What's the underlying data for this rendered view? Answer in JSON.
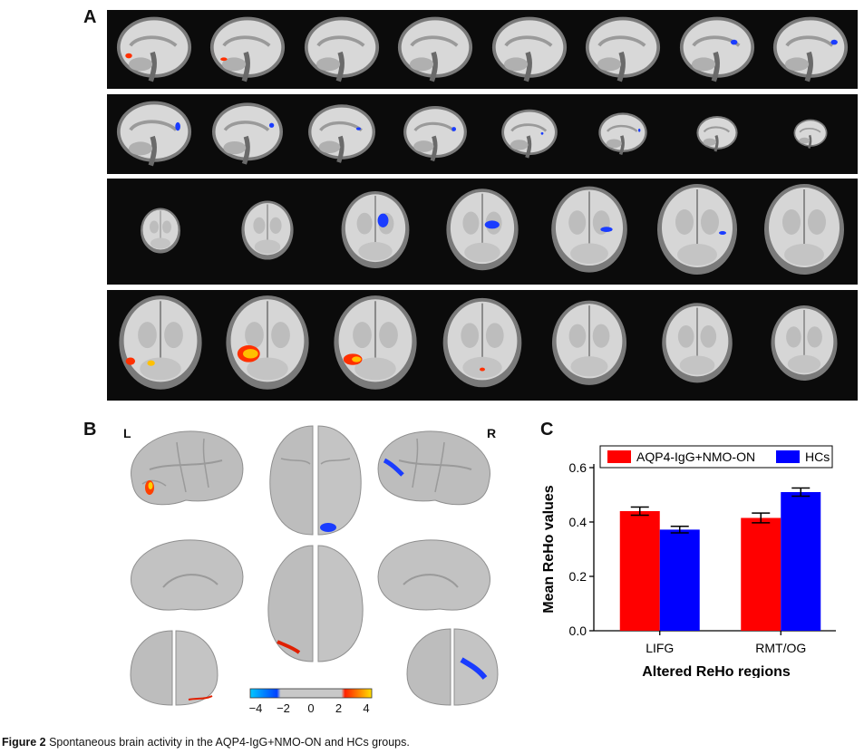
{
  "panels": {
    "a": "A",
    "b": "B",
    "c": "C"
  },
  "hemisphere_labels": {
    "left": "L",
    "right": "R"
  },
  "colorbar": {
    "ticks": [
      "−4",
      "−2",
      "0",
      "2",
      "4"
    ],
    "colors": [
      "#00c8ff",
      "#0040ff",
      "#c8c8c8",
      "#c8c8c8",
      "#ff2000",
      "#ffe000"
    ]
  },
  "caption": {
    "label": "Figure 2",
    "text": " Spontaneous brain activity in the AQP4-IgG+NMO-ON and HCs groups."
  },
  "chart_data": {
    "type": "bar",
    "categories": [
      "LIFG",
      "RMT/OG"
    ],
    "series": [
      {
        "name": "AQP4-IgG+NMO-ON",
        "values": [
          0.44,
          0.415
        ],
        "errors": [
          0.015,
          0.018
        ],
        "color": "#ff0000"
      },
      {
        "name": "HCs",
        "values": [
          0.372,
          0.51
        ],
        "errors": [
          0.012,
          0.015
        ],
        "color": "#0000ff"
      }
    ],
    "xlabel": "Altered ReHo regions",
    "ylabel": "Mean ReHo values",
    "ylim": [
      0,
      0.6
    ],
    "yticks": [
      "0.0",
      "0.2",
      "0.4",
      "0.6"
    ],
    "grid": false,
    "legend": "top"
  }
}
